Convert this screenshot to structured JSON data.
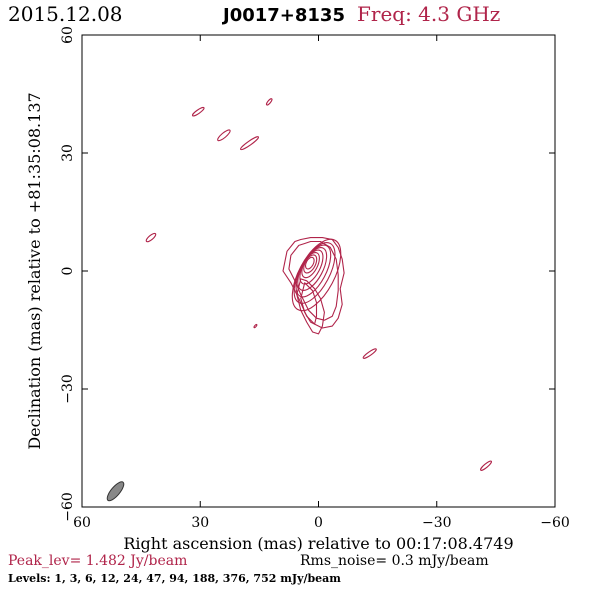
{
  "header": {
    "date": "2015.12.08",
    "source": "J0017+8135",
    "freq": "Freq: 4.3 GHz"
  },
  "footer": {
    "peak": "Peak_lev=  1.482 Jy/beam",
    "rms": "Rms_noise=  0.3 mJy/beam",
    "levels": "Levels:   1,    3,    6,   12,   24,   47,   94,  188,  376,  752 mJy/beam"
  },
  "colors": {
    "contour": "#b0244a",
    "beam": "#888888",
    "axis": "#000000"
  },
  "chart_data": {
    "type": "contour",
    "xlabel": "Right ascension (mas) relative to 00:17:08.4749",
    "ylabel": "Declination (mas) relative to +81:35:08.137",
    "xlim": [
      60,
      -60
    ],
    "ylim": [
      -60,
      60
    ],
    "xticks": [
      60,
      30,
      0,
      -30,
      -60
    ],
    "yticks": [
      -60,
      -30,
      0,
      30,
      60
    ],
    "xtick_labels": [
      "60",
      "30",
      "0",
      "−30",
      "−60"
    ],
    "ytick_labels": [
      "−60",
      "−30",
      "0",
      "30",
      "60"
    ],
    "levels_mJy": [
      1,
      3,
      6,
      12,
      24,
      47,
      94,
      188,
      376,
      752
    ],
    "peak_Jy_per_beam": 1.482,
    "rms_mJy_per_beam": 0.3,
    "beam": {
      "x": 51.5,
      "y": -56.0,
      "major": 6.0,
      "minor": 2.2,
      "pa": 40
    },
    "core_contours": [
      {
        "x": 0.5,
        "y": -1.0,
        "major": 20.0,
        "minor": 9.0,
        "pa": 28
      },
      {
        "x": 1.0,
        "y": -0.5,
        "major": 17.0,
        "minor": 7.5,
        "pa": 28
      },
      {
        "x": 1.3,
        "y": 0.0,
        "major": 14.5,
        "minor": 6.3,
        "pa": 28
      },
      {
        "x": 1.6,
        "y": 0.5,
        "major": 12.0,
        "minor": 5.3,
        "pa": 28
      },
      {
        "x": 1.8,
        "y": 1.0,
        "major": 9.5,
        "minor": 4.3,
        "pa": 28
      },
      {
        "x": 2.0,
        "y": 1.5,
        "major": 7.0,
        "minor": 3.4,
        "pa": 28
      },
      {
        "x": 2.1,
        "y": 1.8,
        "major": 5.0,
        "minor": 2.6,
        "pa": 28
      },
      {
        "x": 2.2,
        "y": 2.0,
        "major": 3.2,
        "minor": 1.8,
        "pa": 28
      }
    ],
    "outer_contours": [
      [
        [
          4.5,
          8.0
        ],
        [
          6.0,
          7.5
        ],
        [
          8.0,
          5.0
        ],
        [
          9.0,
          0.0
        ],
        [
          7.0,
          -3.0
        ],
        [
          5.0,
          -7.0
        ],
        [
          3.0,
          -11.5
        ],
        [
          1.0,
          -13.5
        ],
        [
          -1.0,
          -14.5
        ],
        [
          -3.5,
          -14.0
        ],
        [
          -5.0,
          -12.0
        ],
        [
          -6.0,
          -8.5
        ],
        [
          -5.5,
          -4.5
        ],
        [
          -6.5,
          -0.5
        ],
        [
          -6.0,
          3.0
        ],
        [
          -5.0,
          6.0
        ],
        [
          -3.5,
          8.0
        ],
        [
          -1.0,
          8.5
        ],
        [
          2.0,
          8.5
        ]
      ],
      [
        [
          3.5,
          7.0
        ],
        [
          5.0,
          6.5
        ],
        [
          7.0,
          4.0
        ],
        [
          7.5,
          0.5
        ],
        [
          6.0,
          -2.5
        ],
        [
          4.5,
          -6.0
        ],
        [
          2.5,
          -10.0
        ],
        [
          0.5,
          -12.0
        ],
        [
          -1.5,
          -12.5
        ],
        [
          -3.5,
          -11.5
        ],
        [
          -4.5,
          -9.0
        ],
        [
          -5.0,
          -5.0
        ],
        [
          -5.0,
          -1.0
        ],
        [
          -4.5,
          3.0
        ],
        [
          -3.0,
          6.0
        ],
        [
          -0.5,
          7.5
        ],
        [
          2.0,
          7.5
        ]
      ],
      [
        [
          4.5,
          -2.0
        ],
        [
          5.5,
          -6.0
        ],
        [
          4.5,
          -10.0
        ],
        [
          3.0,
          -13.0
        ],
        [
          1.5,
          -15.5
        ],
        [
          0.0,
          -16.0
        ],
        [
          -1.0,
          -14.0
        ],
        [
          -1.5,
          -10.5
        ],
        [
          -0.5,
          -7.0
        ],
        [
          1.0,
          -4.5
        ],
        [
          3.0,
          -2.5
        ]
      ],
      [
        [
          3.5,
          -3.0
        ],
        [
          4.5,
          -7.0
        ],
        [
          3.5,
          -10.5
        ],
        [
          2.0,
          -13.0
        ],
        [
          1.0,
          -13.5
        ],
        [
          0.5,
          -11.5
        ],
        [
          0.5,
          -8.0
        ],
        [
          1.5,
          -5.0
        ]
      ]
    ],
    "features": [
      {
        "x": 30.5,
        "y": 40.5,
        "major": 3.5,
        "minor": 0.9,
        "pa": 55
      },
      {
        "x": 24.0,
        "y": 34.5,
        "major": 4.0,
        "minor": 1.2,
        "pa": 50
      },
      {
        "x": 17.5,
        "y": 32.5,
        "major": 5.5,
        "minor": 1.0,
        "pa": 55
      },
      {
        "x": 12.5,
        "y": 43.0,
        "major": 2.0,
        "minor": 0.7,
        "pa": 40
      },
      {
        "x": 42.5,
        "y": 8.5,
        "major": 3.0,
        "minor": 1.1,
        "pa": 50
      },
      {
        "x": 16.0,
        "y": -14.0,
        "major": 1.0,
        "minor": 0.4,
        "pa": 40
      },
      {
        "x": -13.0,
        "y": -21.0,
        "major": 4.0,
        "minor": 0.9,
        "pa": 55
      },
      {
        "x": -42.5,
        "y": -49.5,
        "major": 3.5,
        "minor": 0.9,
        "pa": 50
      }
    ]
  }
}
